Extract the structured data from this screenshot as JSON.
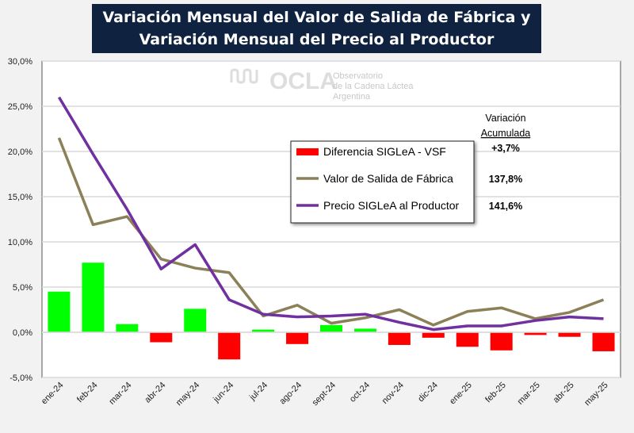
{
  "chart_data": {
    "type": "bar+line",
    "title": "Variación Mensual del Valor de Salida de Fábrica y Variación Mensual del Precio al Productor",
    "categories": [
      "ene-24",
      "feb-24",
      "mar-24",
      "abr-24",
      "may-24",
      "jun-24",
      "jul-24",
      "ago-24",
      "sept-24",
      "oct-24",
      "nov-24",
      "dic-24",
      "ene-25",
      "feb-25",
      "mar-25",
      "abr-25",
      "may-25"
    ],
    "series": [
      {
        "name": "Diferencia SIGLeA - VSF",
        "type": "bar",
        "color_positive": "#00ff00",
        "color_negative": "#ff0000",
        "values": [
          4.5,
          7.7,
          0.9,
          -1.1,
          2.6,
          -3.0,
          0.3,
          -1.3,
          0.8,
          0.4,
          -1.4,
          -0.6,
          -1.6,
          -2.0,
          -0.3,
          -0.5,
          -2.1
        ]
      },
      {
        "name": "Valor de Salida de Fábrica",
        "type": "line",
        "color": "#8b8058",
        "values": [
          21.5,
          11.9,
          12.8,
          8.1,
          7.1,
          6.6,
          1.8,
          3.0,
          1.0,
          1.6,
          2.5,
          0.8,
          2.3,
          2.7,
          1.5,
          2.2,
          3.6
        ]
      },
      {
        "name": "Precio SIGLeA al Productor",
        "type": "line",
        "color": "#7030a0",
        "values": [
          26.0,
          19.7,
          13.6,
          7.0,
          9.7,
          3.6,
          2.0,
          1.7,
          1.8,
          2.0,
          1.1,
          0.3,
          0.7,
          0.7,
          1.3,
          1.7,
          1.5
        ]
      }
    ],
    "ylim": [
      -5,
      30
    ],
    "yticks": [
      "-5,0%",
      "0,0%",
      "5,0%",
      "10,0%",
      "15,0%",
      "20,0%",
      "25,0%",
      "30,0%"
    ],
    "grid": true,
    "legend_position": "center-right",
    "accumulated_header": [
      "Variación",
      "Acumulada"
    ],
    "accumulated_values": [
      "+3,7%",
      "137,8%",
      "141,6%"
    ]
  },
  "watermark": {
    "logo": "OCLA",
    "line1": "Observatorio",
    "line2": "de la Cadena Láctea",
    "line3": "Argentina"
  }
}
